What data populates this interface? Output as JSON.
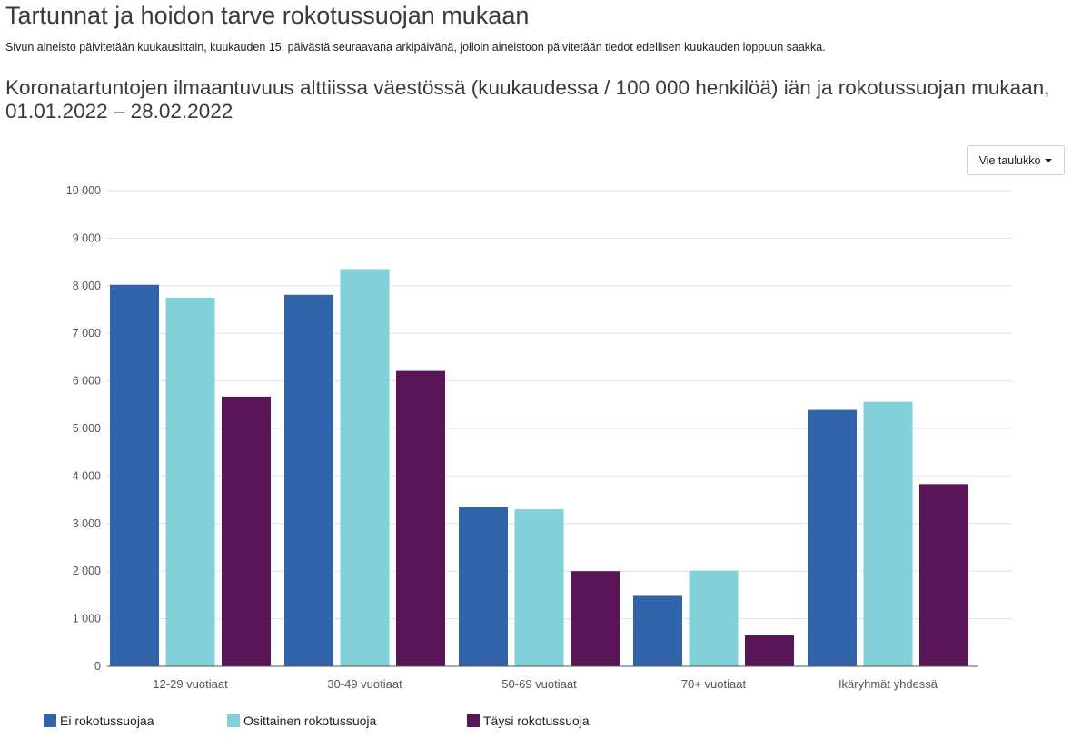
{
  "page": {
    "title": "Tartunnat ja hoidon tarve rokotussuojan mukaan",
    "note": "Sivun aineisto päivitetään kuukausittain, kuukauden 15. päivästä seuraavana arkipäivänä, jolloin aineistoon päivitetään tiedot edellisen kuukauden loppuun saakka."
  },
  "export_button": {
    "label": "Vie taulukko"
  },
  "chart_data": {
    "type": "bar",
    "title": "Koronatartuntojen ilmaantuvuus alttiissa väestössä (kuukaudessa / 100 000 henkilöä) iän ja rokotussuojan mukaan, 01.01.2022 – 28.02.2022",
    "xlabel": "",
    "ylabel": "",
    "ylim": [
      0,
      10000
    ],
    "yticks": [
      0,
      1000,
      2000,
      3000,
      4000,
      5000,
      6000,
      7000,
      8000,
      9000,
      10000
    ],
    "ytick_labels": [
      "0",
      "1 000",
      "2 000",
      "3 000",
      "4 000",
      "5 000",
      "6 000",
      "7 000",
      "8 000",
      "9 000",
      "10 000"
    ],
    "grid": true,
    "legend_position": "bottom-left",
    "categories": [
      "12-29 vuotiaat",
      "30-49 vuotiaat",
      "50-69 vuotiaat",
      "70+ vuotiaat",
      "Ikäryhmät yhdessä"
    ],
    "series": [
      {
        "name": "Ei rokotussuojaa",
        "color": "#3264ab",
        "values": [
          8020,
          7810,
          3350,
          1480,
          5390
        ]
      },
      {
        "name": "Osittainen rokotussuoja",
        "color": "#82d0d8",
        "values": [
          7750,
          8350,
          3300,
          2010,
          5560
        ]
      },
      {
        "name": "Täysi rokotussuoja",
        "color": "#581657",
        "values": [
          5670,
          6210,
          2000,
          650,
          3830
        ]
      }
    ]
  }
}
